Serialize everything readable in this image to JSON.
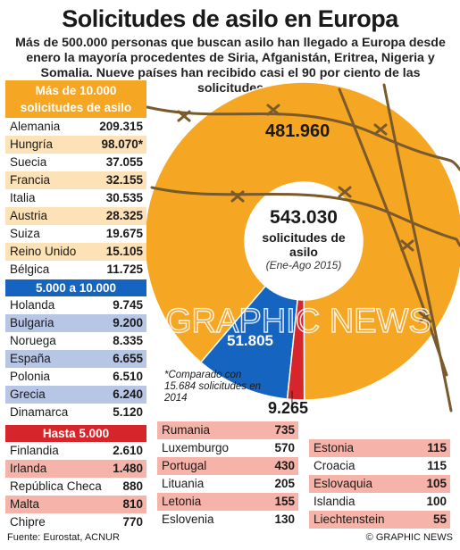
{
  "title": "Solicitudes de asilo en Europa",
  "subtitle": "Más de 500.000 personas que buscan asilo han llegado a Europa desde enero la mayoría procedentes de Siria, Afganistán, Eritrea, Nigeria y Somalia. Nueve países han recibido casi el 90 por ciento de las solicitudes",
  "groups": [
    {
      "header": "Más de 10.000 solicitudes de asilo",
      "color": "#f5a623",
      "rows": [
        {
          "country": "Alemania",
          "value": "209.315"
        },
        {
          "country": "Hungría",
          "value": "98.070*"
        },
        {
          "country": "Suecia",
          "value": "37.055"
        },
        {
          "country": "Francia",
          "value": "32.155"
        },
        {
          "country": "Italia",
          "value": "30.535"
        },
        {
          "country": "Austria",
          "value": "28.325"
        },
        {
          "country": "Suiza",
          "value": "19.675"
        },
        {
          "country": "Reino Unido",
          "value": "15.105"
        },
        {
          "country": "Bélgica",
          "value": "11.725"
        }
      ]
    },
    {
      "header": "5.000 a 10.000",
      "color": "#1565c0",
      "rows": [
        {
          "country": "Holanda",
          "value": "9.745"
        },
        {
          "country": "Bulgaria",
          "value": "9.200"
        },
        {
          "country": "Noruega",
          "value": "8.335"
        },
        {
          "country": "España",
          "value": "6.655"
        },
        {
          "country": "Polonia",
          "value": "6.510"
        },
        {
          "country": "Grecia",
          "value": "6.240"
        },
        {
          "country": "Dinamarca",
          "value": "5.120"
        }
      ]
    },
    {
      "header": "Hasta 5.000",
      "color": "#d7262b",
      "rows": [
        {
          "country": "Finlandia",
          "value": "2.610"
        },
        {
          "country": "Irlanda",
          "value": "1.480"
        },
        {
          "country": "República Checa",
          "value": "880"
        },
        {
          "country": "Malta",
          "value": "810"
        },
        {
          "country": "Chipre",
          "value": "770"
        }
      ]
    }
  ],
  "small_table_2": [
    {
      "country": "Rumania",
      "value": "735"
    },
    {
      "country": "Luxemburgo",
      "value": "570"
    },
    {
      "country": "Portugal",
      "value": "430"
    },
    {
      "country": "Lituania",
      "value": "205"
    },
    {
      "country": "Letonia",
      "value": "155"
    },
    {
      "country": "Eslovenia",
      "value": "130"
    }
  ],
  "small_table_3": [
    {
      "country": "Estonia",
      "value": "115"
    },
    {
      "country": "Croacia",
      "value": "115"
    },
    {
      "country": "Eslovaquia",
      "value": "105"
    },
    {
      "country": "Islandia",
      "value": "100"
    },
    {
      "country": "Liechtenstein",
      "value": "55"
    }
  ],
  "note": "*Comparado con 15.684 solicitudes en 2014",
  "center": {
    "total": "543.030",
    "label": "solicitudes de asilo",
    "period": "(Ene-Ago 2015)"
  },
  "source": "Fuente: Eurostat, ACNUR",
  "copyright": "© GRAPHIC NEWS",
  "watermark": "GRAPHIC NEWS",
  "chart_data": {
    "type": "pie",
    "donut": true,
    "categories": [
      "Más de 10.000",
      "5.000 a 10.000",
      "Hasta 5.000"
    ],
    "values": [
      481960,
      51805,
      9265
    ],
    "labels": [
      "481.960",
      "51.805",
      "9.265"
    ],
    "colors": [
      "#f5a623",
      "#1565c0",
      "#d7262b"
    ],
    "total": "543.030"
  }
}
